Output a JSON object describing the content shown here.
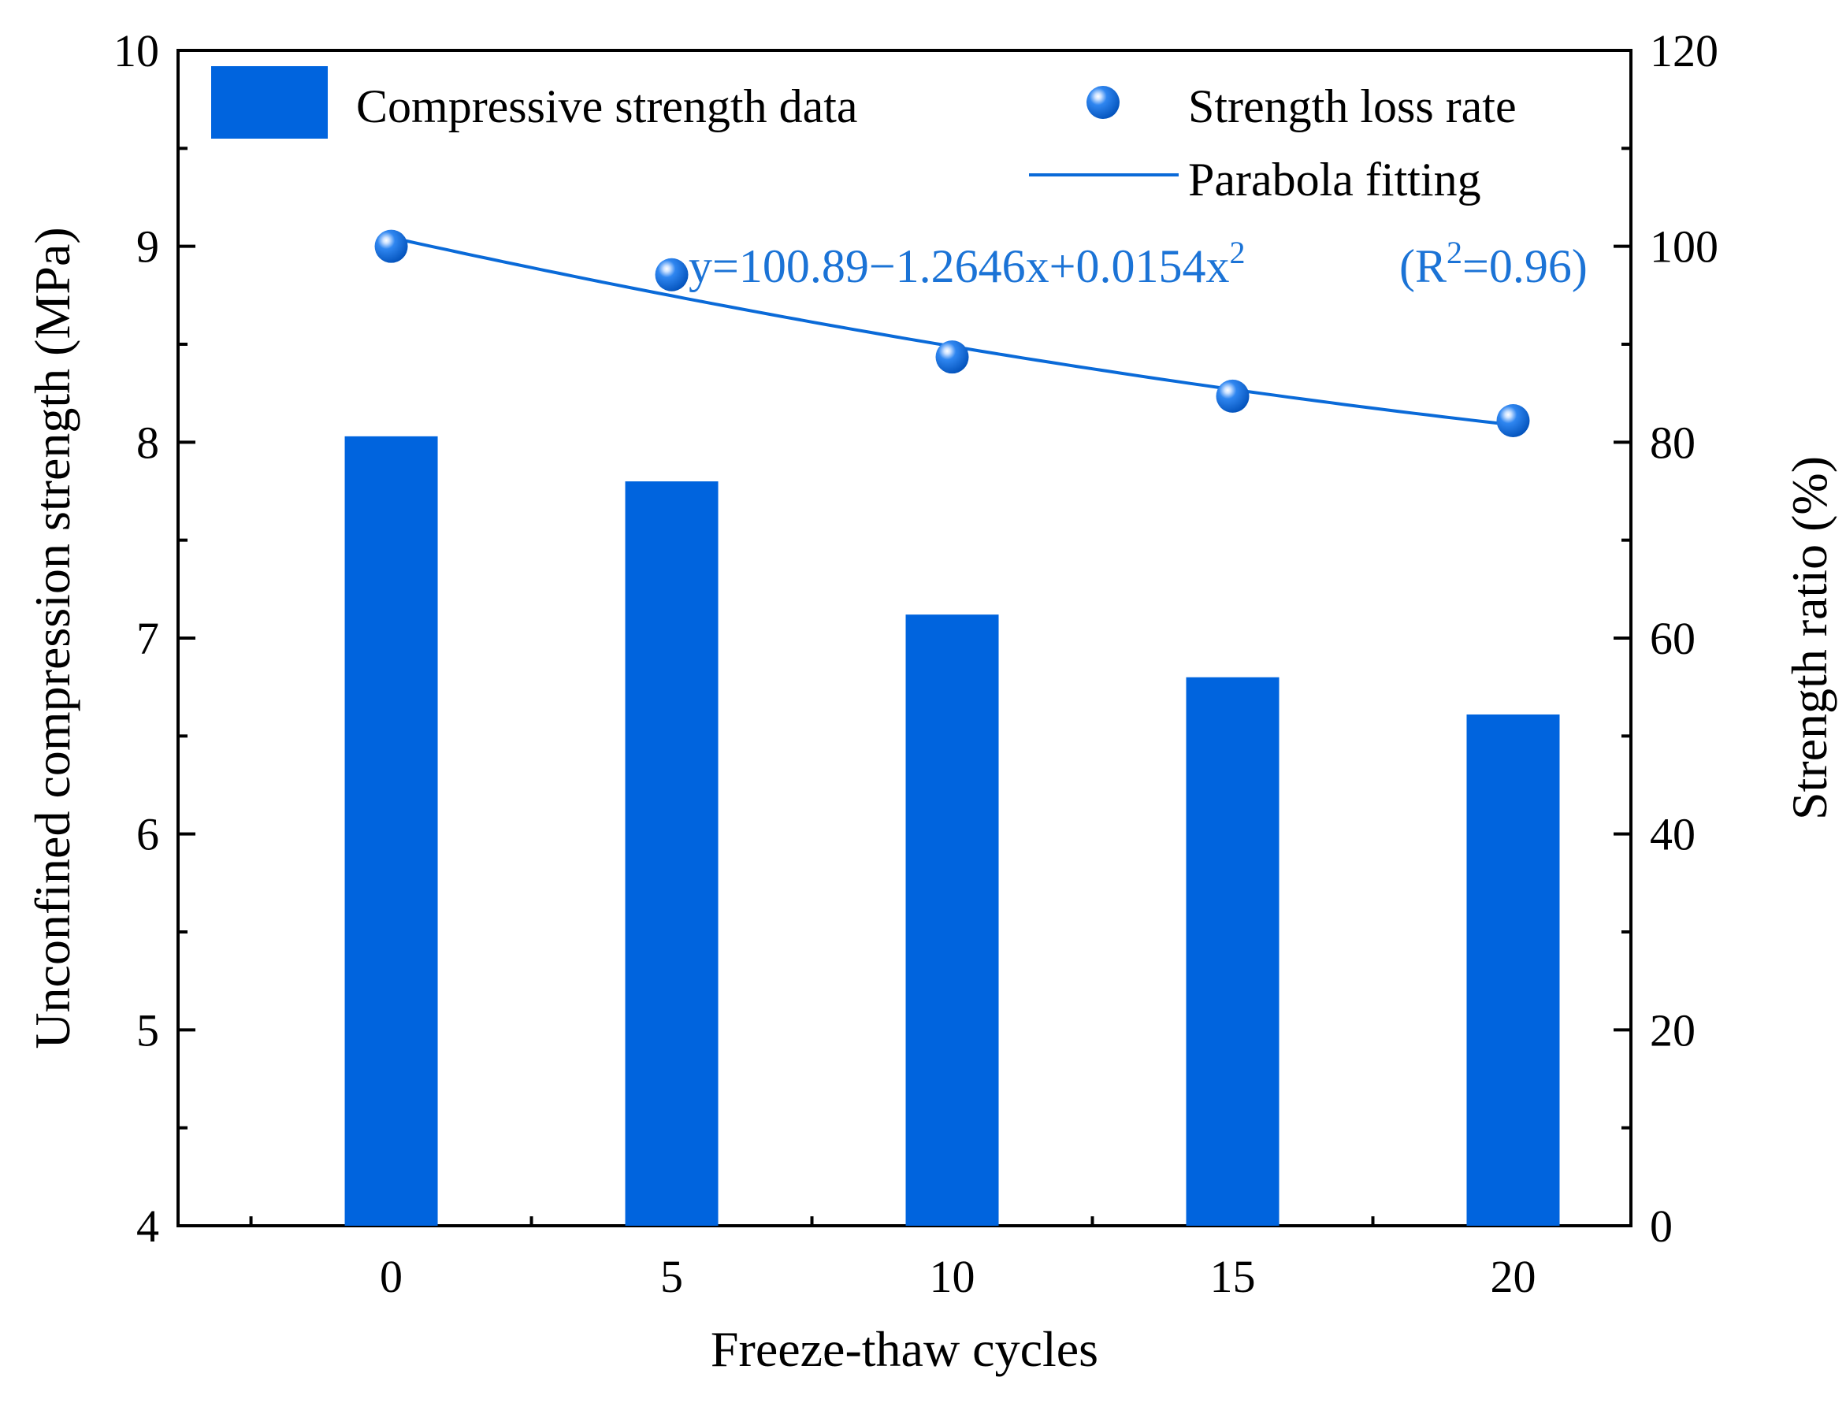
{
  "chart_data": {
    "type": "bar",
    "categories": [
      "0",
      "5",
      "10",
      "15",
      "20"
    ],
    "x": [
      0,
      5,
      10,
      15,
      20
    ],
    "xlabel": "Freeze-thaw cycles",
    "ylabel_left": "Unconfined compression strength (MPa)",
    "ylabel_right": "Strength ratio (%)",
    "ylim_left": [
      4,
      10
    ],
    "ylim_right": [
      0,
      120
    ],
    "left_ticks": [
      "4",
      "5",
      "6",
      "7",
      "8",
      "9",
      "10"
    ],
    "right_ticks": [
      "0",
      "20",
      "40",
      "60",
      "80",
      "100",
      "120"
    ],
    "series": [
      {
        "name": "Compressive strength data",
        "type": "bar",
        "axis": "left",
        "values": [
          8.03,
          7.8,
          7.12,
          6.8,
          6.61
        ]
      },
      {
        "name": "Strength loss rate",
        "type": "scatter",
        "axis": "right",
        "values": [
          100.0,
          97.1,
          88.7,
          84.7,
          82.2
        ]
      },
      {
        "name": "Parabola fitting",
        "type": "line",
        "axis": "right",
        "equation": {
          "a": 100.89,
          "b": -1.2646,
          "c": 0.0154
        }
      }
    ],
    "annotation": {
      "equation_main": "y=100.89−1.2646x+0.0154x",
      "equation_sup": "2",
      "r2_open": "(R",
      "r2_sup": "2",
      "r2_close": "=0.96)"
    },
    "legend_position": "top",
    "colors": {
      "bar": "#0064DE",
      "marker": "#0064DE",
      "line": "#0A6AD8",
      "annotation": "#1B73D6"
    }
  }
}
